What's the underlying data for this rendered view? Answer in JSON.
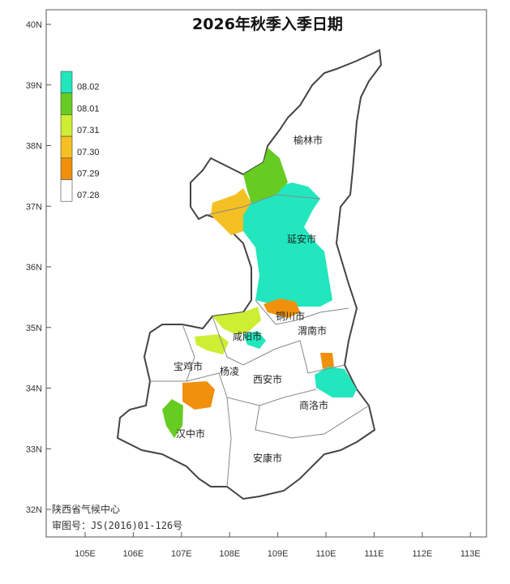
{
  "title": "2026年秋季入季日期",
  "legend": [
    {
      "label": "08.02",
      "color": "#22e6bd"
    },
    {
      "label": "08.01",
      "color": "#66cc22"
    },
    {
      "label": "07.31",
      "color": "#ccee33"
    },
    {
      "label": "07.30",
      "color": "#f5c023"
    },
    {
      "label": "07.29",
      "color": "#f0900c"
    },
    {
      "label": "07.28",
      "color": "#ffffff"
    }
  ],
  "lat_ticks": [
    {
      "value": 40,
      "label": "40N"
    },
    {
      "value": 39,
      "label": "39N"
    },
    {
      "value": 38,
      "label": "38N"
    },
    {
      "value": 37,
      "label": "37N"
    },
    {
      "value": 36,
      "label": "36N"
    },
    {
      "value": 35,
      "label": "35N"
    },
    {
      "value": 34,
      "label": "34N"
    },
    {
      "value": 33,
      "label": "33N"
    },
    {
      "value": 32,
      "label": "32N"
    }
  ],
  "lon_ticks": [
    {
      "value": 105,
      "label": "105E"
    },
    {
      "value": 106,
      "label": "106E"
    },
    {
      "value": 107,
      "label": "107E"
    },
    {
      "value": 108,
      "label": "108E"
    },
    {
      "value": 109,
      "label": "109E"
    },
    {
      "value": 110,
      "label": "110E"
    },
    {
      "value": 111,
      "label": "111E"
    },
    {
      "value": 112,
      "label": "112E"
    },
    {
      "value": 113,
      "label": "113E"
    }
  ],
  "cities": [
    "榆林市",
    "延安市",
    "铜川市",
    "渭南市",
    "咸阳市",
    "宝鸡市",
    "杨凌",
    "西安市",
    "商洛市",
    "汉中市",
    "安康市"
  ],
  "credits": [
    "陕西省气候中心",
    "审图号：JS(2016)01-126号"
  ]
}
